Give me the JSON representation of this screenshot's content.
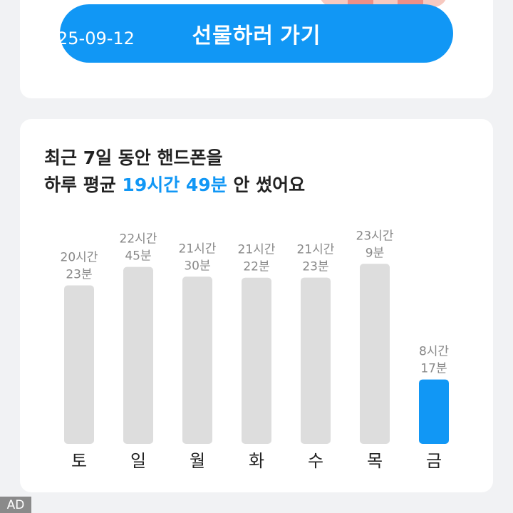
{
  "gift_card": {
    "button_label": "선물하러 가기",
    "date_overlay": "25-09-12"
  },
  "summary": {
    "line1": "최근 7일 동안 핸드폰을",
    "line2_prefix": "하루 평균 ",
    "line2_highlight": "19시간 49분",
    "line2_suffix": " 안 썼어요"
  },
  "colors": {
    "accent": "#1197f5",
    "bar_default": "#dddddd",
    "label": "#888888",
    "text": "#222222"
  },
  "chart_data": {
    "type": "bar",
    "categories": [
      "토",
      "일",
      "월",
      "화",
      "수",
      "목",
      "금"
    ],
    "values": [
      20.383,
      22.75,
      21.5,
      21.367,
      21.383,
      23.15,
      8.283
    ],
    "value_labels": [
      [
        "20시간",
        "23분"
      ],
      [
        "22시간",
        "45분"
      ],
      [
        "21시간",
        "30분"
      ],
      [
        "21시간",
        "22분"
      ],
      [
        "21시간",
        "23분"
      ],
      [
        "23시간",
        "9분"
      ],
      [
        "8시간",
        "17분"
      ]
    ],
    "unit": "hours",
    "highlight_index": 6,
    "ylim": [
      0,
      24
    ],
    "grid": false,
    "legend": false,
    "title": "",
    "xlabel": "",
    "ylabel": ""
  },
  "ad_badge": "AD"
}
